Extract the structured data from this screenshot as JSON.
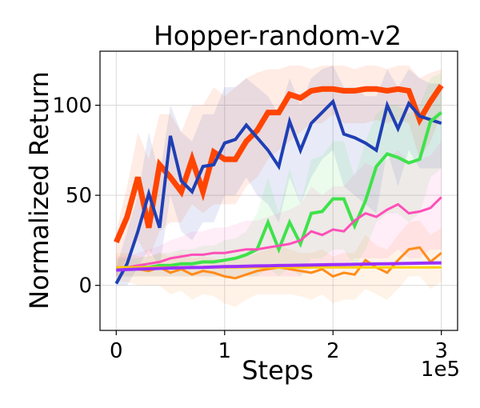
{
  "chart_data": {
    "type": "line",
    "title": "Hopper-random-v2",
    "xlabel": "Steps",
    "ylabel": "Normalized Return",
    "x_multiplier_label": "1e5",
    "xlim": [
      -0.15,
      3.15
    ],
    "ylim": [
      -25,
      130
    ],
    "x_ticks": [
      0,
      1,
      2,
      3
    ],
    "y_ticks": [
      0,
      50,
      100
    ],
    "x_tick_labels": [
      "0",
      "1",
      "2",
      "3"
    ],
    "y_tick_labels": [
      "0",
      "50",
      "100"
    ],
    "grid": true,
    "legend": "none",
    "x": [
      0.0,
      0.1,
      0.2,
      0.3,
      0.4,
      0.5,
      0.6,
      0.7,
      0.8,
      0.9,
      1.0,
      1.1,
      1.2,
      1.3,
      1.4,
      1.5,
      1.6,
      1.7,
      1.8,
      1.9,
      2.0,
      2.1,
      2.2,
      2.3,
      2.4,
      2.5,
      2.6,
      2.7,
      2.8,
      2.9,
      3.0
    ],
    "series": [
      {
        "color": "#ff4500",
        "width": 7,
        "values": [
          24,
          38,
          60,
          32,
          67,
          60,
          52,
          70,
          52,
          74,
          70,
          70,
          80,
          86,
          96,
          96,
          106,
          104,
          108,
          109,
          109,
          108,
          108,
          109,
          109,
          108,
          109,
          108,
          92,
          102,
          111
        ],
        "band": [
          [
            5,
            30
          ],
          [
            15,
            55
          ],
          [
            25,
            85
          ],
          [
            15,
            70
          ],
          [
            30,
            95
          ],
          [
            35,
            95
          ],
          [
            35,
            85
          ],
          [
            45,
            100
          ],
          [
            40,
            100
          ],
          [
            45,
            110
          ],
          [
            45,
            105
          ],
          [
            45,
            110
          ],
          [
            55,
            115
          ],
          [
            60,
            118
          ],
          [
            70,
            120
          ],
          [
            75,
            120
          ],
          [
            80,
            122
          ],
          [
            85,
            122
          ],
          [
            90,
            120
          ],
          [
            90,
            122
          ],
          [
            95,
            122
          ],
          [
            90,
            122
          ],
          [
            90,
            120
          ],
          [
            90,
            122
          ],
          [
            92,
            122
          ],
          [
            90,
            120
          ],
          [
            92,
            122
          ],
          [
            90,
            122
          ],
          [
            70,
            115
          ],
          [
            80,
            118
          ],
          [
            95,
            120
          ]
        ]
      },
      {
        "color": "#1f3fb4",
        "width": 4,
        "values": [
          1,
          12,
          30,
          51,
          32,
          83,
          58,
          52,
          66,
          67,
          79,
          81,
          89,
          82,
          75,
          66,
          91,
          75,
          90,
          96,
          102,
          84,
          82,
          79,
          75,
          100,
          87,
          101,
          94,
          92,
          90
        ],
        "band": [
          [
            0,
            10
          ],
          [
            0,
            30
          ],
          [
            10,
            50
          ],
          [
            20,
            85
          ],
          [
            10,
            60
          ],
          [
            50,
            100
          ],
          [
            30,
            85
          ],
          [
            25,
            80
          ],
          [
            35,
            95
          ],
          [
            35,
            95
          ],
          [
            50,
            110
          ],
          [
            50,
            110
          ],
          [
            60,
            115
          ],
          [
            50,
            110
          ],
          [
            45,
            105
          ],
          [
            35,
            95
          ],
          [
            60,
            115
          ],
          [
            45,
            100
          ],
          [
            60,
            115
          ],
          [
            70,
            120
          ],
          [
            75,
            122
          ],
          [
            55,
            110
          ],
          [
            50,
            110
          ],
          [
            45,
            105
          ],
          [
            40,
            105
          ],
          [
            75,
            120
          ],
          [
            55,
            110
          ],
          [
            75,
            120
          ],
          [
            65,
            115
          ],
          [
            65,
            112
          ],
          [
            65,
            112
          ]
        ]
      },
      {
        "color": "#3ee24a",
        "width": 4,
        "values": [
          9,
          10,
          10,
          10,
          11,
          11,
          12,
          12,
          13,
          13,
          14,
          15,
          17,
          20,
          35,
          20,
          35,
          23,
          40,
          41,
          48,
          48,
          33,
          47,
          66,
          73,
          71,
          68,
          70,
          91,
          96
        ],
        "band": [
          [
            5,
            15
          ],
          [
            5,
            15
          ],
          [
            5,
            15
          ],
          [
            5,
            16
          ],
          [
            5,
            18
          ],
          [
            5,
            18
          ],
          [
            5,
            20
          ],
          [
            5,
            20
          ],
          [
            5,
            22
          ],
          [
            5,
            22
          ],
          [
            5,
            25
          ],
          [
            5,
            26
          ],
          [
            5,
            30
          ],
          [
            5,
            40
          ],
          [
            10,
            60
          ],
          [
            5,
            40
          ],
          [
            10,
            65
          ],
          [
            5,
            45
          ],
          [
            15,
            70
          ],
          [
            15,
            72
          ],
          [
            20,
            80
          ],
          [
            20,
            80
          ],
          [
            10,
            60
          ],
          [
            20,
            80
          ],
          [
            35,
            95
          ],
          [
            40,
            100
          ],
          [
            40,
            100
          ],
          [
            35,
            95
          ],
          [
            40,
            100
          ],
          [
            60,
            115
          ],
          [
            65,
            118
          ]
        ]
      },
      {
        "color": "#ff4fb8",
        "width": 3,
        "values": [
          10,
          10,
          11,
          12,
          13,
          15,
          16,
          17,
          17,
          18,
          18,
          19,
          20,
          20,
          21,
          22,
          23,
          25,
          30,
          28,
          31,
          30,
          36,
          40,
          38,
          42,
          45,
          40,
          41,
          43,
          49
        ],
        "band": [
          [
            5,
            16
          ],
          [
            5,
            16
          ],
          [
            5,
            18
          ],
          [
            5,
            20
          ],
          [
            5,
            22
          ],
          [
            5,
            25
          ],
          [
            5,
            27
          ],
          [
            5,
            30
          ],
          [
            5,
            30
          ],
          [
            5,
            32
          ],
          [
            5,
            32
          ],
          [
            5,
            34
          ],
          [
            5,
            36
          ],
          [
            5,
            36
          ],
          [
            5,
            38
          ],
          [
            5,
            40
          ],
          [
            5,
            42
          ],
          [
            5,
            45
          ],
          [
            10,
            55
          ],
          [
            10,
            50
          ],
          [
            10,
            55
          ],
          [
            10,
            55
          ],
          [
            15,
            62
          ],
          [
            15,
            68
          ],
          [
            15,
            65
          ],
          [
            15,
            70
          ],
          [
            20,
            75
          ],
          [
            15,
            68
          ],
          [
            15,
            70
          ],
          [
            20,
            72
          ],
          [
            20,
            80
          ]
        ]
      },
      {
        "color": "#ff8c1a",
        "width": 3,
        "values": [
          10,
          10,
          9,
          8,
          10,
          7,
          9,
          6,
          8,
          7,
          5,
          4,
          6,
          8,
          9,
          10,
          9,
          8,
          7,
          9,
          5,
          7,
          6,
          14,
          10,
          7,
          14,
          20,
          21,
          13,
          18
        ],
        "band": [
          [
            2,
            18
          ],
          [
            2,
            18
          ],
          [
            0,
            16
          ],
          [
            0,
            16
          ],
          [
            0,
            18
          ],
          [
            -5,
            16
          ],
          [
            -3,
            18
          ],
          [
            -8,
            15
          ],
          [
            -5,
            16
          ],
          [
            -6,
            15
          ],
          [
            -10,
            14
          ],
          [
            -12,
            14
          ],
          [
            -8,
            16
          ],
          [
            -5,
            18
          ],
          [
            -5,
            20
          ],
          [
            -5,
            22
          ],
          [
            -5,
            20
          ],
          [
            -6,
            18
          ],
          [
            -8,
            18
          ],
          [
            -5,
            20
          ],
          [
            -10,
            16
          ],
          [
            -8,
            18
          ],
          [
            -8,
            18
          ],
          [
            -2,
            28
          ],
          [
            -5,
            22
          ],
          [
            -8,
            20
          ],
          [
            -2,
            28
          ],
          [
            5,
            35
          ],
          [
            5,
            36
          ],
          [
            -2,
            28
          ],
          [
            2,
            32
          ]
        ]
      },
      {
        "color": "#ffd000",
        "width": 3,
        "values": [
          10,
          10,
          10,
          10,
          10,
          10,
          10,
          10,
          10,
          10,
          10,
          10,
          10,
          10,
          10,
          10,
          10,
          10,
          10,
          10,
          10,
          10,
          10,
          10,
          10,
          10,
          10,
          10,
          10,
          10,
          10
        ],
        "band": null
      },
      {
        "color": "#9b30ff",
        "width": 4,
        "values": [
          8.5,
          8.8,
          9.0,
          9.2,
          9.4,
          9.6,
          9.8,
          9.9,
          10.0,
          10.2,
          10.4,
          10.5,
          10.6,
          10.8,
          10.9,
          11.0,
          11.1,
          11.2,
          11.3,
          11.4,
          11.5,
          11.6,
          11.7,
          11.8,
          11.9,
          12.0,
          12.1,
          12.2,
          12.3,
          12.4,
          12.5
        ],
        "band": null
      }
    ]
  }
}
